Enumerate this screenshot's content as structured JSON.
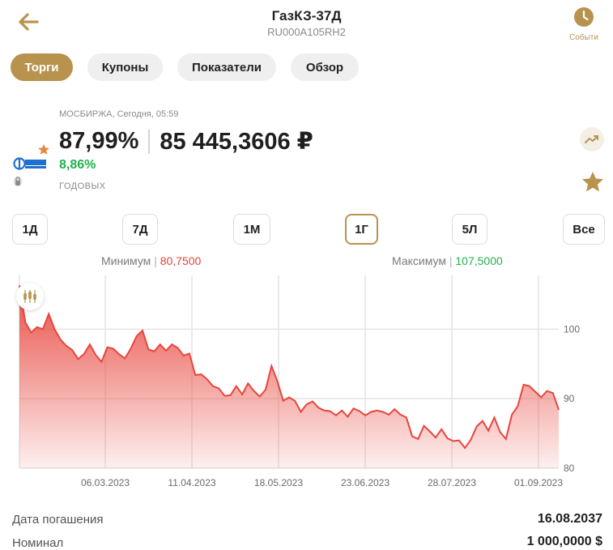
{
  "header": {
    "title": "ГазКЗ-37Д",
    "isin": "RU000A105RH2",
    "events_label": "Событи"
  },
  "tabs": [
    {
      "label": "Торги",
      "active": true
    },
    {
      "label": "Купоны",
      "active": false
    },
    {
      "label": "Показатели",
      "active": false
    },
    {
      "label": "Обзор",
      "active": false
    }
  ],
  "quote": {
    "exchange_time": "МОСБИРЖА, Сегодня, 05:59",
    "price_percent": "87,99%",
    "price_rub": "85 445,3606 ₽",
    "yield": "8,86%",
    "yield_label": "ГОДОВЫХ",
    "logo_text": "ГАЗПРОМ"
  },
  "periods": [
    {
      "label": "1Д",
      "active": false
    },
    {
      "label": "7Д",
      "active": false
    },
    {
      "label": "1М",
      "active": false
    },
    {
      "label": "1Г",
      "active": true
    },
    {
      "label": "5Л",
      "active": false
    },
    {
      "label": "Все",
      "active": false
    }
  ],
  "range": {
    "min_label": "Минимум",
    "min_value": "80,7500",
    "max_label": "Максимум",
    "max_value": "107,5000"
  },
  "chart_data": {
    "type": "area",
    "x_ticks": [
      "06.03.2023",
      "11.04.2023",
      "18.05.2023",
      "23.06.2023",
      "28.07.2023",
      "01.09.2023"
    ],
    "y_ticks": [
      100,
      90,
      80
    ],
    "ylim": [
      80,
      107.5
    ],
    "grid": true,
    "color": "#e8453c",
    "values": [
      106.3,
      101,
      99.5,
      100.3,
      100,
      102.2,
      100,
      98.5,
      97.6,
      97,
      95.7,
      96.4,
      97.8,
      96.3,
      95.3,
      97.4,
      97.2,
      96.4,
      95.8,
      97.2,
      99,
      99.8,
      97.1,
      96.8,
      97.8,
      96.9,
      97.8,
      97.3,
      96.2,
      96.5,
      93.4,
      93.5,
      92.8,
      91.8,
      91.5,
      90.4,
      90.5,
      91.8,
      90.6,
      92.2,
      91.1,
      90.3,
      91.3,
      94.7,
      92.5,
      89.7,
      90.2,
      89.7,
      88.1,
      89.2,
      89.6,
      88.7,
      88.3,
      88.2,
      87.6,
      88.3,
      87.4,
      88.6,
      88.2,
      87.6,
      88.1,
      88.3,
      88.1,
      87.7,
      88.5,
      87.7,
      87.3,
      84.6,
      84.2,
      86.1,
      85.3,
      84.4,
      85.6,
      84.3,
      83.9,
      84,
      82.9,
      84.1,
      86,
      86.8,
      85.4,
      87.3,
      85.2,
      84.2,
      87.7,
      88.9,
      92,
      91.8,
      91,
      90.2,
      91.1,
      90.8,
      88.4
    ]
  },
  "details": [
    {
      "label": "Дата погашения",
      "value": "16.08.2037"
    },
    {
      "label": "Номинал",
      "value": "1 000,0000 $"
    }
  ],
  "colors": {
    "accent": "#b8934e",
    "positive": "#22b14c",
    "negative": "#e2453c"
  }
}
